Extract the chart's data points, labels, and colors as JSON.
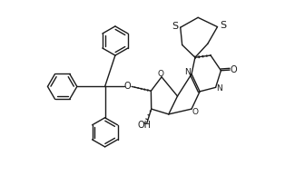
{
  "bg_color": "#ffffff",
  "line_color": "#1a1a1a",
  "lw": 1.0,
  "figsize": [
    3.25,
    1.94
  ],
  "dpi": 100,
  "xlim": [
    0,
    10
  ],
  "ylim": [
    0,
    6
  ]
}
